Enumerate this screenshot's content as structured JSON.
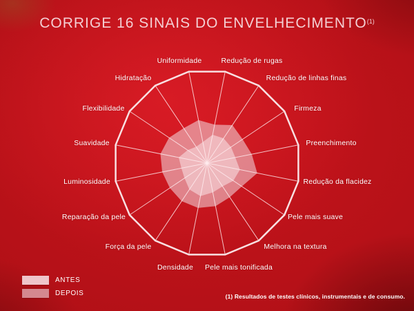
{
  "title": {
    "text": "CORRIGE 16 SINAIS DO ENVELHECIMENTO",
    "superscript": "(1)"
  },
  "chart_data": {
    "type": "radar",
    "title": "CORRIGE 16 SINAIS DO ENVELHECIMENTO(1)",
    "axes": [
      "Uniformidade",
      "Redução de rugas",
      "Redução de linhas finas",
      "Firmeza",
      "Preenchimento",
      "Redução da flacidez",
      "Pele mais suave",
      "Melhora na textura",
      "Pele mais tonificada",
      "Densidade",
      "Força da pele",
      "Reparação da pele",
      "Luminosidade",
      "Suavidade",
      "Flexibilidade",
      "Hidratação"
    ],
    "series": [
      {
        "name": "ANTES",
        "color": "#efc5ca",
        "fill": "rgba(255,248,250,0.45)",
        "values": [
          0.23,
          0.31,
          0.32,
          0.31,
          0.31,
          0.36,
          0.34,
          0.3,
          0.32,
          0.36,
          0.34,
          0.29,
          0.28,
          0.31,
          0.25,
          0.21
        ]
      },
      {
        "name": "DEPOIS",
        "color": "#d4888f",
        "fill": "rgba(242,221,226,0.55)",
        "values": [
          0.47,
          0.42,
          0.49,
          0.46,
          0.49,
          0.55,
          0.45,
          0.44,
          0.47,
          0.49,
          0.49,
          0.48,
          0.49,
          0.51,
          0.49,
          0.45
        ]
      }
    ],
    "scale": {
      "min": 0,
      "max": 1,
      "outer_ring": 1
    },
    "grid": "single 16-sided outer ring with 16 spokes, no radial tick rings",
    "legend_position": "bottom-left",
    "ring_color": "#f8dfe1",
    "spoke_color": "rgba(255,238,240,0.8)"
  },
  "footnote": "(1) Resultados de testes clínicos, instrumentais e de consumo."
}
